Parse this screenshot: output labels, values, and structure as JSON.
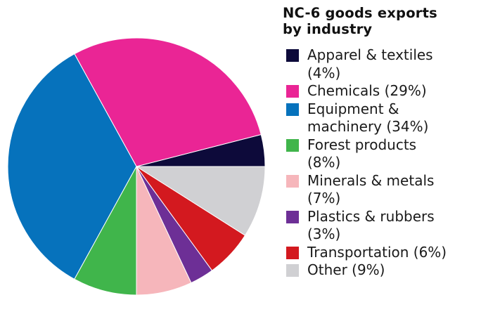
{
  "chart_data": {
    "type": "pie",
    "title_lines": [
      "NC-6 goods exports",
      "by industry"
    ],
    "slices": [
      {
        "label_lines": [
          "Apparel & textiles",
          "(4%)"
        ],
        "value": 4,
        "color": "#0d0a3a"
      },
      {
        "label_lines": [
          "Chemicals (29%)"
        ],
        "value": 29,
        "color": "#ea2595"
      },
      {
        "label_lines": [
          "Equipment &",
          "machinery (34%)"
        ],
        "value": 34,
        "color": "#0672bc"
      },
      {
        "label_lines": [
          "Forest products",
          "(8%)"
        ],
        "value": 8,
        "color": "#40b54b"
      },
      {
        "label_lines": [
          "Minerals & metals",
          "(7%)"
        ],
        "value": 7,
        "color": "#f6b6bb"
      },
      {
        "label_lines": [
          "Plastics & rubbers",
          "(3%)"
        ],
        "value": 3,
        "color": "#6d2f96"
      },
      {
        "label_lines": [
          "Transportation (6%)"
        ],
        "value": 6,
        "color": "#d3191f"
      },
      {
        "label_lines": [
          "Other (9%)"
        ],
        "value": 9,
        "color": "#d0d0d3"
      }
    ],
    "start_angle_deg": 0,
    "direction": "counterclockwise",
    "legend_position": "right"
  }
}
